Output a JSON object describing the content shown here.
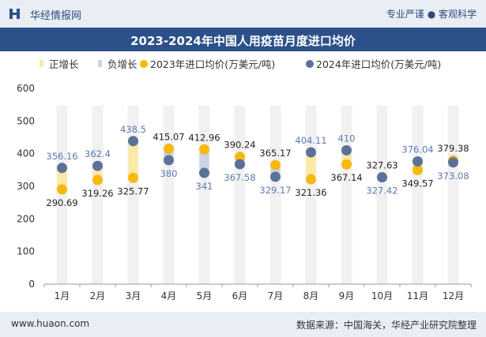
{
  "header": {
    "brand": "华经情报网",
    "slogan": "专业严谨 ● 客观科学"
  },
  "chart_data": {
    "type": "line-dot-range",
    "title": "2023-2024年中国人用疫苗月度进口均价",
    "legend": [
      "正增长",
      "负增长",
      "2023年进口均价(万美元/吨)",
      "2024年进口均价(万美元/吨)"
    ],
    "categories": [
      "1月",
      "2月",
      "3月",
      "4月",
      "5月",
      "6月",
      "7月",
      "8月",
      "9月",
      "10月",
      "11月",
      "12月"
    ],
    "series": [
      {
        "name": "2023年进口均价(万美元/吨)",
        "values": [
          290.69,
          319.26,
          325.77,
          415.07,
          412.96,
          390.24,
          365.17,
          321.36,
          367.14,
          327.63,
          349.57,
          379.38
        ]
      },
      {
        "name": "2024年进口均价(万美元/吨)",
        "values": [
          356.16,
          362.4,
          438.5,
          380,
          341,
          367.58,
          329.17,
          404.11,
          410,
          327.42,
          376.04,
          373.08
        ]
      }
    ],
    "labels_2023": [
      "290.69",
      "319.26",
      "325.77",
      "415.07",
      "412.96",
      "390.24",
      "365.17",
      "321.36",
      "367.14",
      "327.63",
      "349.57",
      "379.38"
    ],
    "labels_2024": [
      "356.16",
      "362.4",
      "438.5",
      "380",
      "341",
      "367.58",
      "329.17",
      "404.11",
      "410",
      "327.42",
      "376.04",
      "373.08"
    ],
    "yticks": [
      0,
      100,
      200,
      300,
      400,
      500,
      600
    ],
    "ylim": [
      0,
      600
    ],
    "grid": false,
    "colors": {
      "positive": "#fbe9a6",
      "negative": "#c9d4e4",
      "s2023": "#f8b90f",
      "s2024": "#5c7199",
      "column": "#f1f1f1",
      "label_2023": "#222222",
      "label_2024": "#5c7ab0"
    }
  },
  "footer": {
    "site": "www.huaon.com",
    "source": "数据来源：中国海关，华经产业研究院整理"
  }
}
